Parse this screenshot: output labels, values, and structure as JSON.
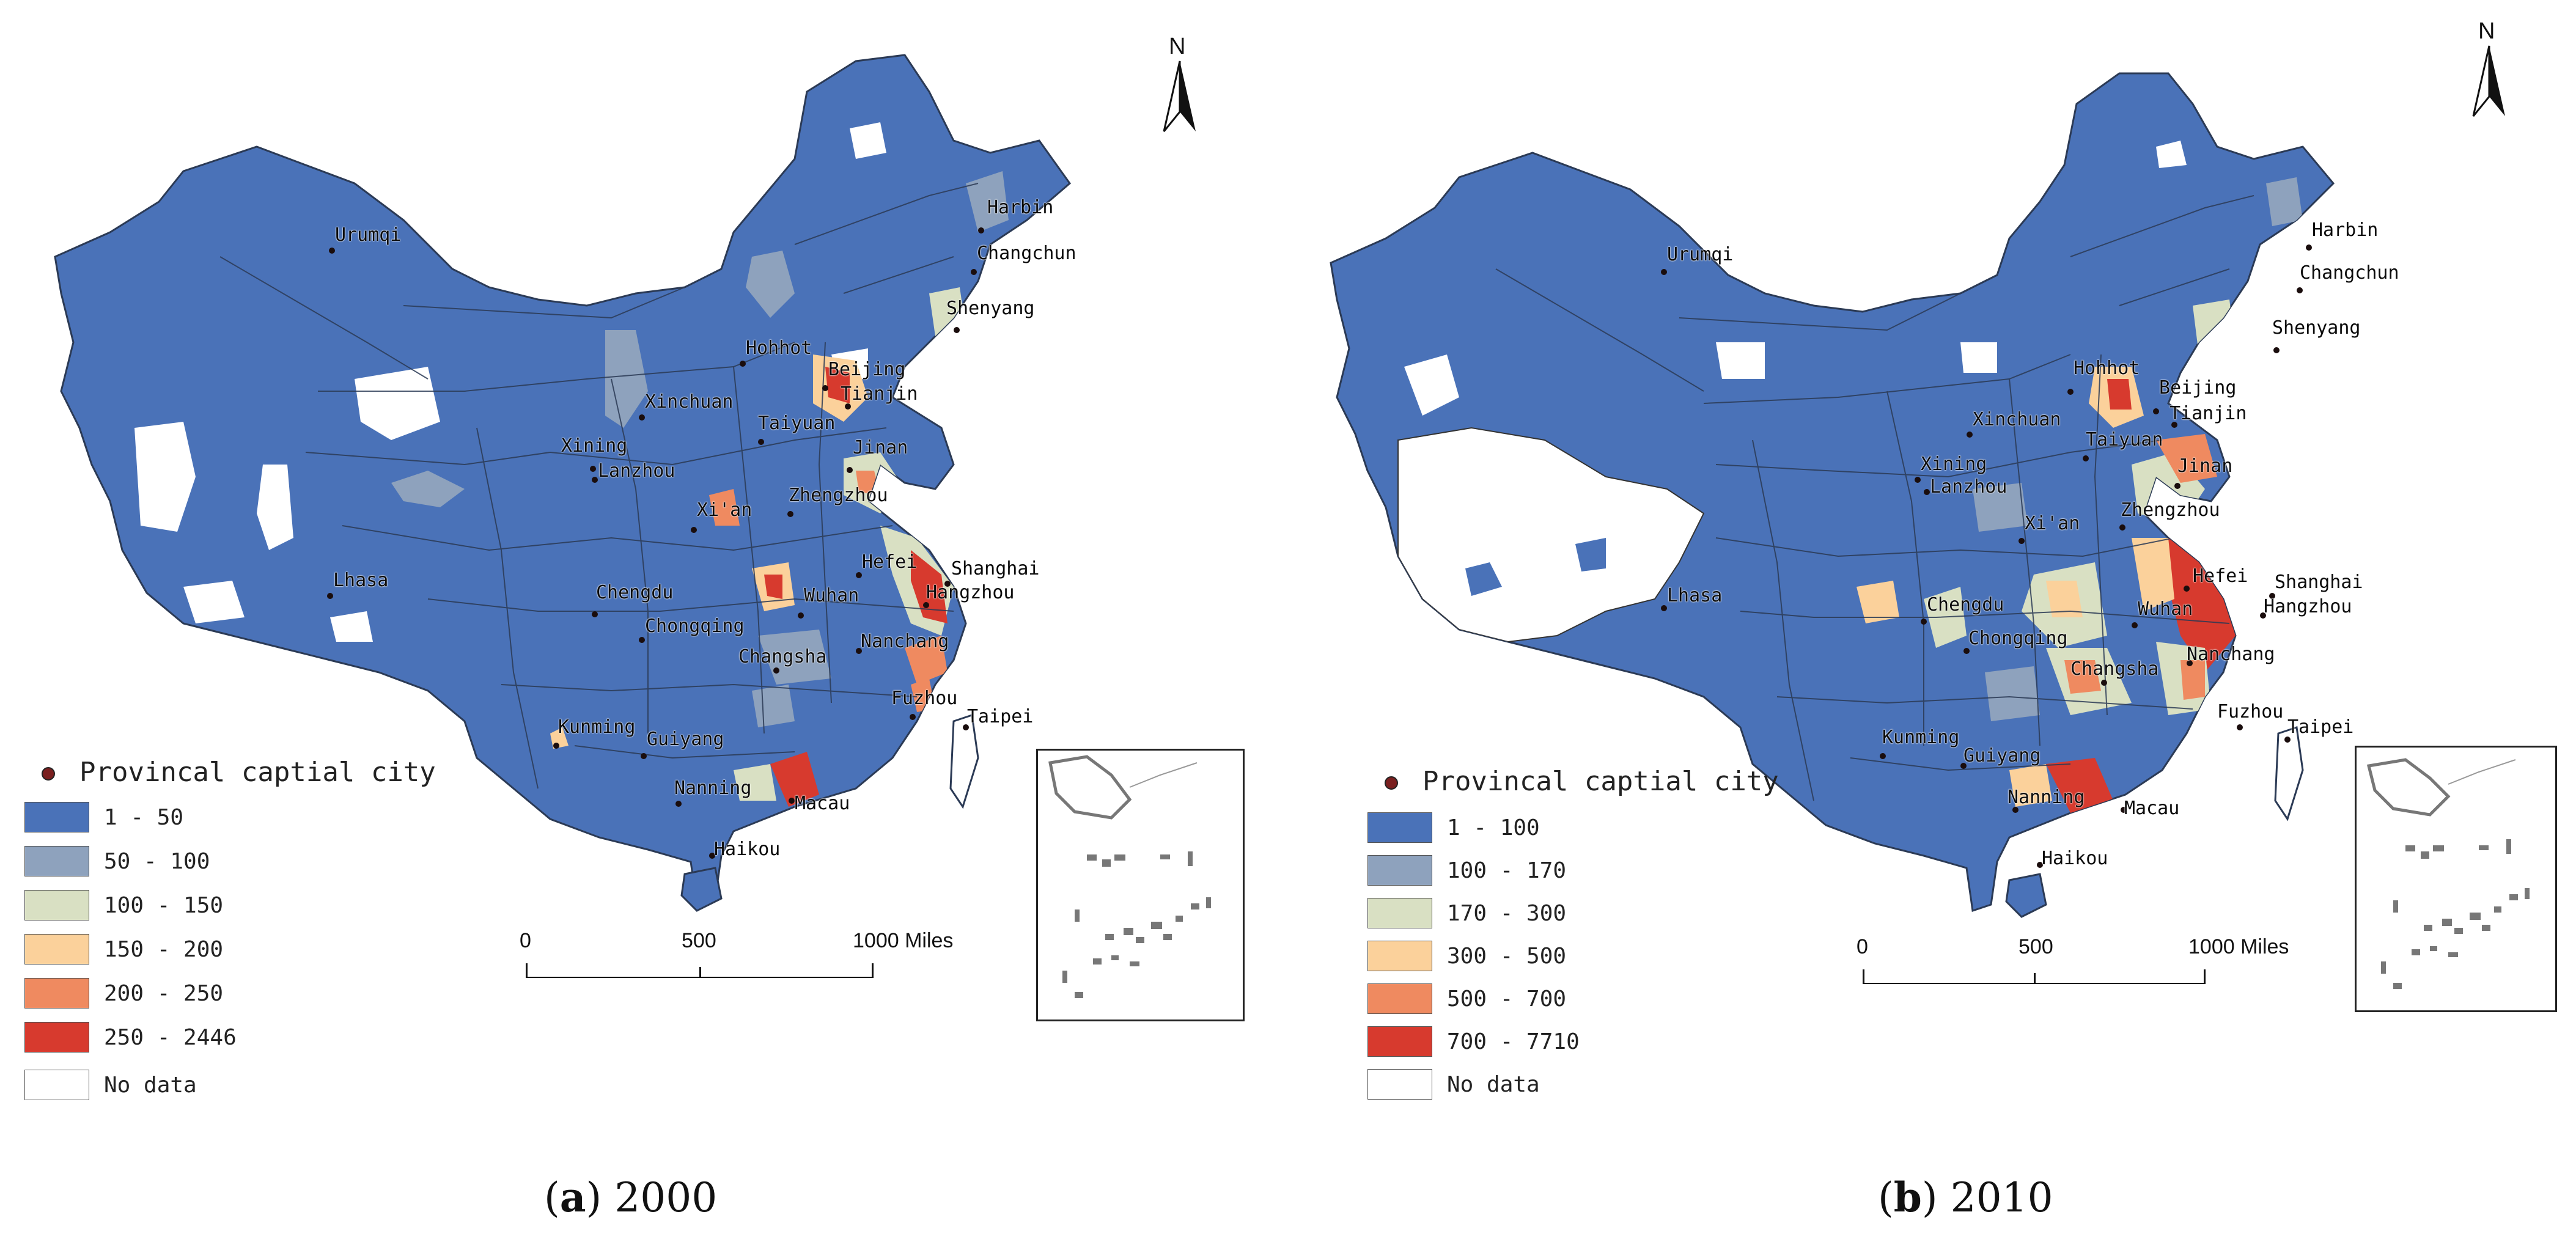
{
  "panels": [
    {
      "caption_letter": "a",
      "caption_year": "2000",
      "legend_title": "Provincal captial city",
      "legend": [
        {
          "label": "1 - 50",
          "color": "#4a72b8"
        },
        {
          "label": "50 - 100",
          "color": "#8ea2bd"
        },
        {
          "label": "100 - 150",
          "color": "#d9e0c3"
        },
        {
          "label": "150 - 200",
          "color": "#fbd19b"
        },
        {
          "label": "200 - 250",
          "color": "#ef8a60"
        },
        {
          "label": "250 - 2446",
          "color": "#d73a2e"
        },
        {
          "label": "No data",
          "color": "#ffffff"
        }
      ],
      "scale": {
        "labels": [
          "0",
          "500",
          "1000 Miles"
        ]
      },
      "north": "N",
      "cities": [
        "Urumqi",
        "Harbin",
        "Changchun",
        "Shenyang",
        "Hohhot",
        "Beijing",
        "Tianjin",
        "Xinchuan",
        "Taiyuan",
        "Xining",
        "Lanzhou",
        "Jinan",
        "Zhengzhou",
        "Xi'an",
        "Hefei",
        "Shanghai",
        "Lhasa",
        "Chengdu",
        "Wuhan",
        "Hangzhou",
        "Chongqing",
        "Nanchang",
        "Changsha",
        "Fuzhou",
        "Taipei",
        "Guiyang",
        "Kunming",
        "Nanning",
        "Macau",
        "Haikou"
      ]
    },
    {
      "caption_letter": "b",
      "caption_year": "2010",
      "legend_title": "Provincal captial city",
      "legend": [
        {
          "label": "1 - 100",
          "color": "#4a72b8"
        },
        {
          "label": "100 - 170",
          "color": "#8ea2bd"
        },
        {
          "label": "170 - 300",
          "color": "#d9e0c3"
        },
        {
          "label": "300 - 500",
          "color": "#fbd19b"
        },
        {
          "label": "500 - 700",
          "color": "#ef8a60"
        },
        {
          "label": "700 - 7710",
          "color": "#d73a2e"
        },
        {
          "label": "No data",
          "color": "#ffffff"
        }
      ],
      "scale": {
        "labels": [
          "0",
          "500",
          "1000 Miles"
        ]
      },
      "north": "N",
      "cities": [
        "Urumqi",
        "Harbin",
        "Changchun",
        "Shenyang",
        "Hohhot",
        "Beijing",
        "Tianjin",
        "Xinchuan",
        "Taiyuan",
        "Xining",
        "Lanzhou",
        "Jinan",
        "Zhengzhou",
        "Xi'an",
        "Hefei",
        "Shanghai",
        "Lhasa",
        "Chengdu",
        "Wuhan",
        "Hangzhou",
        "Chongqing",
        "Nanchang",
        "Changsha",
        "Fuzhou",
        "Taipei",
        "Guiyang",
        "Kunming",
        "Nanning",
        "Macau",
        "Haikou"
      ]
    }
  ]
}
